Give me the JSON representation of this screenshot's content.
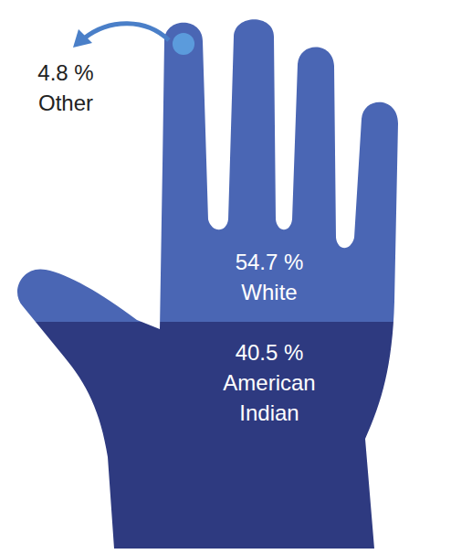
{
  "chart_data": {
    "type": "pictogram",
    "categories": [
      "American Indian",
      "White",
      "Other"
    ],
    "values": [
      40.5,
      54.7,
      4.8
    ],
    "value_labels": [
      "40.5 %",
      "54.7 %",
      "4.8 %"
    ],
    "colors": [
      "#2e3a80",
      "#4a66b4",
      "#5b9bdc"
    ],
    "data_labels": true
  }
}
